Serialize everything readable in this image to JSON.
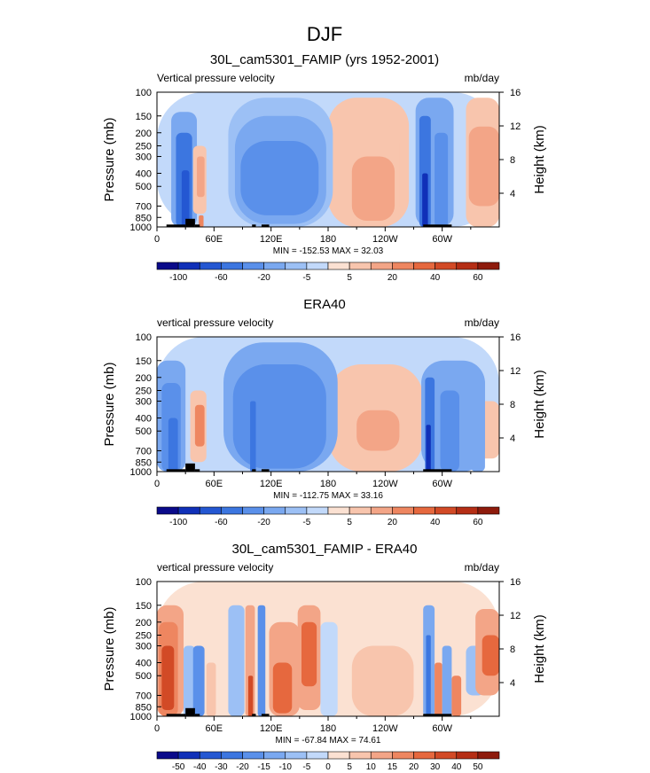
{
  "figure": {
    "title": "DJF"
  },
  "colors": {
    "scale": [
      "#0a0a8a",
      "#1030b8",
      "#2457d2",
      "#3c76e0",
      "#5a90ea",
      "#7aa8f0",
      "#9cc0f5",
      "#c2d9fa",
      "#fbe1d2",
      "#f8c5ad",
      "#f3a587",
      "#ee8660",
      "#e6683e",
      "#d24a26",
      "#b52e15",
      "#8e1b0c"
    ],
    "terrain": "#000000"
  },
  "chart_data": [
    {
      "type": "heatmap",
      "title": "30L_cam5301_FAMIP (yrs 1952-2001)",
      "left_label": "Vertical pressure velocity",
      "right_label": "mb/day",
      "ylabel": "Pressure (mb)",
      "ylabel_right": "Height (km)",
      "x_ticks": [
        "0",
        "60E",
        "120E",
        "180",
        "120W",
        "60W"
      ],
      "x_tick_positions": [
        0,
        60,
        120,
        180,
        240,
        300
      ],
      "xlim": [
        0,
        360
      ],
      "y_ticks": [
        "100",
        "150",
        "200",
        "250",
        "300",
        "400",
        "500",
        "700",
        "850",
        "1000"
      ],
      "y_tick_values": [
        100,
        150,
        200,
        250,
        300,
        400,
        500,
        700,
        850,
        1000
      ],
      "ylim": [
        1000,
        100
      ],
      "y_scale": "log",
      "height_ticks": [
        "4",
        "8",
        "12",
        "16"
      ],
      "height_tick_values": [
        4,
        8,
        12,
        16
      ],
      "stats": "MIN = -152.53  MAX =  32.03",
      "colorbar_labels": [
        "-100",
        "-60",
        "-20",
        "-5",
        "5",
        "20",
        "40",
        "60"
      ],
      "colorbar_label_slots": [
        1,
        3,
        5,
        7,
        9,
        11,
        13,
        15
      ],
      "regions": [
        {
          "lon": [
            0,
            360
          ],
          "p": [
            100,
            1000
          ],
          "v": -2
        },
        {
          "lon": [
            180,
            265
          ],
          "p": [
            110,
            1000
          ],
          "v": 3
        },
        {
          "lon": [
            325,
            360
          ],
          "p": [
            110,
            1000
          ],
          "v": 3
        },
        {
          "lon": [
            195,
            255
          ],
          "p": [
            170,
            1000
          ],
          "v": 8
        },
        {
          "lon": [
            205,
            250
          ],
          "p": [
            300,
            900
          ],
          "v": 15
        },
        {
          "lon": [
            340,
            360
          ],
          "p": [
            230,
            500
          ],
          "v": 18
        },
        {
          "lon": [
            328,
            360
          ],
          "p": [
            180,
            700
          ],
          "v": 10
        },
        {
          "lon": [
            75,
            185
          ],
          "p": [
            110,
            1000
          ],
          "v": -7
        },
        {
          "lon": [
            82,
            178
          ],
          "p": [
            150,
            950
          ],
          "v": -12
        },
        {
          "lon": [
            88,
            170
          ],
          "p": [
            230,
            820
          ],
          "v": -22
        },
        {
          "lon": [
            92,
            168
          ],
          "p": [
            320,
            650
          ],
          "v": -28
        },
        {
          "lon": [
            15,
            42
          ],
          "p": [
            140,
            1000
          ],
          "v": -10
        },
        {
          "lon": [
            20,
            37
          ],
          "p": [
            200,
            1000
          ],
          "v": -30
        },
        {
          "lon": [
            26,
            34
          ],
          "p": [
            380,
            1000
          ],
          "v": -60
        },
        {
          "lon": [
            38,
            52
          ],
          "p": [
            250,
            800
          ],
          "v": 5
        },
        {
          "lon": [
            42,
            50
          ],
          "p": [
            300,
            600
          ],
          "v": 15
        },
        {
          "lon": [
            44,
            49
          ],
          "p": [
            820,
            1000
          ],
          "v": 22
        },
        {
          "lon": [
            272,
            312
          ],
          "p": [
            110,
            1000
          ],
          "v": -10
        },
        {
          "lon": [
            276,
            288
          ],
          "p": [
            150,
            1000
          ],
          "v": -32
        },
        {
          "lon": [
            279,
            285
          ],
          "p": [
            400,
            1000
          ],
          "v": -90
        },
        {
          "lon": [
            292,
            306
          ],
          "p": [
            200,
            1000
          ],
          "v": -28
        }
      ],
      "terrain": [
        {
          "lon": [
            10,
            30
          ],
          "p": 960
        },
        {
          "lon": [
            30,
            40
          ],
          "p": 870
        },
        {
          "lon": [
            40,
            45
          ],
          "p": 960
        },
        {
          "lon": [
            100,
            104
          ],
          "p": 960
        },
        {
          "lon": [
            110,
            118
          ],
          "p": 960
        },
        {
          "lon": [
            280,
            310
          ],
          "p": 960
        }
      ]
    },
    {
      "type": "heatmap",
      "title": "ERA40",
      "left_label": "vertical pressure velocity",
      "right_label": "mb/day",
      "ylabel": "Pressure (mb)",
      "ylabel_right": "Height (km)",
      "x_ticks": [
        "0",
        "60E",
        "120E",
        "180",
        "120W",
        "60W"
      ],
      "x_tick_positions": [
        0,
        60,
        120,
        180,
        240,
        300
      ],
      "xlim": [
        0,
        360
      ],
      "y_ticks": [
        "100",
        "150",
        "200",
        "250",
        "300",
        "400",
        "500",
        "700",
        "850",
        "1000"
      ],
      "y_tick_values": [
        100,
        150,
        200,
        250,
        300,
        400,
        500,
        700,
        850,
        1000
      ],
      "ylim": [
        1000,
        100
      ],
      "y_scale": "log",
      "height_ticks": [
        "4",
        "8",
        "12",
        "16"
      ],
      "height_tick_values": [
        4,
        8,
        12,
        16
      ],
      "stats": "MIN = -112.75  MAX =  33.16",
      "colorbar_labels": [
        "-100",
        "-60",
        "-20",
        "-5",
        "5",
        "20",
        "40",
        "60"
      ],
      "colorbar_label_slots": [
        1,
        3,
        5,
        7,
        9,
        11,
        13,
        15
      ],
      "regions": [
        {
          "lon": [
            0,
            360
          ],
          "p": [
            100,
            1000
          ],
          "v": -2
        },
        {
          "lon": [
            180,
            280
          ],
          "p": [
            160,
            1000
          ],
          "v": 3
        },
        {
          "lon": [
            195,
            265
          ],
          "p": [
            300,
            900
          ],
          "v": 8
        },
        {
          "lon": [
            210,
            255
          ],
          "p": [
            350,
            700
          ],
          "v": 14
        },
        {
          "lon": [
            338,
            360
          ],
          "p": [
            300,
            800
          ],
          "v": 4
        },
        {
          "lon": [
            0,
            30
          ],
          "p": [
            150,
            1000
          ],
          "v": -10
        },
        {
          "lon": [
            5,
            25
          ],
          "p": [
            220,
            1000
          ],
          "v": -22
        },
        {
          "lon": [
            12,
            22
          ],
          "p": [
            400,
            1000
          ],
          "v": -35
        },
        {
          "lon": [
            35,
            52
          ],
          "p": [
            250,
            850
          ],
          "v": 6
        },
        {
          "lon": [
            40,
            50
          ],
          "p": [
            320,
            650
          ],
          "v": 16
        },
        {
          "lon": [
            70,
            190
          ],
          "p": [
            110,
            1000
          ],
          "v": -8
        },
        {
          "lon": [
            80,
            178
          ],
          "p": [
            160,
            950
          ],
          "v": -16
        },
        {
          "lon": [
            90,
            170
          ],
          "p": [
            220,
            850
          ],
          "v": -28
        },
        {
          "lon": [
            98,
            104
          ],
          "p": [
            300,
            1000
          ],
          "v": -45
        },
        {
          "lon": [
            278,
            345
          ],
          "p": [
            150,
            1000
          ],
          "v": -10
        },
        {
          "lon": [
            282,
            292
          ],
          "p": [
            200,
            1000
          ],
          "v": -35
        },
        {
          "lon": [
            283,
            288
          ],
          "p": [
            450,
            1000
          ],
          "v": -80
        },
        {
          "lon": [
            298,
            318
          ],
          "p": [
            250,
            1000
          ],
          "v": -22
        },
        {
          "lon": [
            330,
            345
          ],
          "p": [
            200,
            1000
          ],
          "v": -12
        }
      ],
      "terrain": [
        {
          "lon": [
            10,
            30
          ],
          "p": 960
        },
        {
          "lon": [
            30,
            40
          ],
          "p": 870
        },
        {
          "lon": [
            40,
            45
          ],
          "p": 960
        },
        {
          "lon": [
            100,
            104
          ],
          "p": 960
        },
        {
          "lon": [
            110,
            118
          ],
          "p": 960
        },
        {
          "lon": [
            280,
            310
          ],
          "p": 960
        }
      ]
    },
    {
      "type": "heatmap",
      "title": "30L_cam5301_FAMIP - ERA40",
      "left_label": "vertical pressure velocity",
      "right_label": "mb/day",
      "ylabel": "Pressure (mb)",
      "ylabel_right": "Height (km)",
      "x_ticks": [
        "0",
        "60E",
        "120E",
        "180",
        "120W",
        "60W"
      ],
      "x_tick_positions": [
        0,
        60,
        120,
        180,
        240,
        300
      ],
      "xlim": [
        0,
        360
      ],
      "y_ticks": [
        "100",
        "150",
        "200",
        "250",
        "300",
        "400",
        "500",
        "700",
        "850",
        "1000"
      ],
      "y_tick_values": [
        100,
        150,
        200,
        250,
        300,
        400,
        500,
        700,
        850,
        1000
      ],
      "ylim": [
        1000,
        100
      ],
      "y_scale": "log",
      "height_ticks": [
        "4",
        "8",
        "12",
        "16"
      ],
      "height_tick_values": [
        4,
        8,
        12,
        16
      ],
      "stats": "MIN = -67.84  MAX =  74.61",
      "colorbar_labels": [
        "-50",
        "-40",
        "-30",
        "-20",
        "-15",
        "-10",
        "-5",
        "0",
        "5",
        "10",
        "15",
        "20",
        "30",
        "40",
        "50"
      ],
      "colorbar_label_slots": [
        1,
        2,
        3,
        4,
        5,
        6,
        7,
        8,
        9,
        10,
        11,
        12,
        13,
        14,
        15
      ],
      "regions": [
        {
          "lon": [
            0,
            360
          ],
          "p": [
            100,
            1000
          ],
          "v": 2
        },
        {
          "lon": [
            0,
            28
          ],
          "p": [
            150,
            1000
          ],
          "v": 9
        },
        {
          "lon": [
            2,
            22
          ],
          "p": [
            200,
            1000
          ],
          "v": 16
        },
        {
          "lon": [
            5,
            18
          ],
          "p": [
            300,
            900
          ],
          "v": 26
        },
        {
          "lon": [
            28,
            40
          ],
          "p": [
            300,
            1000
          ],
          "v": -9
        },
        {
          "lon": [
            38,
            50
          ],
          "p": [
            300,
            1000
          ],
          "v": -18
        },
        {
          "lon": [
            52,
            62
          ],
          "p": [
            400,
            1000
          ],
          "v": 6
        },
        {
          "lon": [
            75,
            92
          ],
          "p": [
            150,
            1000
          ],
          "v": -9
        },
        {
          "lon": [
            93,
            103
          ],
          "p": [
            150,
            1000
          ],
          "v": 12
        },
        {
          "lon": [
            96,
            101
          ],
          "p": [
            500,
            1000
          ],
          "v": 26
        },
        {
          "lon": [
            106,
            114
          ],
          "p": [
            150,
            1000
          ],
          "v": -18
        },
        {
          "lon": [
            118,
            150
          ],
          "p": [
            200,
            1000
          ],
          "v": 9
        },
        {
          "lon": [
            122,
            142
          ],
          "p": [
            400,
            950
          ],
          "v": 20
        },
        {
          "lon": [
            148,
            172
          ],
          "p": [
            150,
            900
          ],
          "v": 12
        },
        {
          "lon": [
            152,
            168
          ],
          "p": [
            200,
            600
          ],
          "v": 22
        },
        {
          "lon": [
            172,
            190
          ],
          "p": [
            200,
            1000
          ],
          "v": -5
        },
        {
          "lon": [
            205,
            270
          ],
          "p": [
            300,
            1000
          ],
          "v": 6
        },
        {
          "lon": [
            280,
            292
          ],
          "p": [
            150,
            1000
          ],
          "v": -15
        },
        {
          "lon": [
            283,
            288
          ],
          "p": [
            250,
            1000
          ],
          "v": -32
        },
        {
          "lon": [
            292,
            300
          ],
          "p": [
            400,
            1000
          ],
          "v": 16
        },
        {
          "lon": [
            300,
            310
          ],
          "p": [
            300,
            1000
          ],
          "v": -14
        },
        {
          "lon": [
            310,
            320
          ],
          "p": [
            500,
            1000
          ],
          "v": 16
        },
        {
          "lon": [
            325,
            345
          ],
          "p": [
            300,
            700
          ],
          "v": -8
        },
        {
          "lon": [
            335,
            360
          ],
          "p": [
            160,
            700
          ],
          "v": 12
        },
        {
          "lon": [
            342,
            360
          ],
          "p": [
            250,
            500
          ],
          "v": 22
        }
      ],
      "terrain": [
        {
          "lon": [
            10,
            30
          ],
          "p": 960
        },
        {
          "lon": [
            30,
            40
          ],
          "p": 870
        },
        {
          "lon": [
            40,
            45
          ],
          "p": 960
        },
        {
          "lon": [
            100,
            104
          ],
          "p": 960
        },
        {
          "lon": [
            110,
            118
          ],
          "p": 960
        },
        {
          "lon": [
            280,
            310
          ],
          "p": 960
        }
      ]
    }
  ]
}
